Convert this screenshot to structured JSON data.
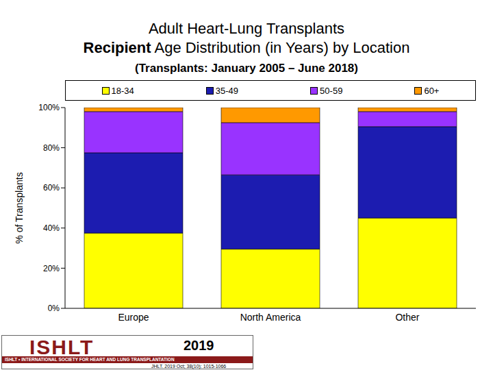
{
  "chart_data": {
    "type": "bar",
    "stacked": true,
    "title": [
      "Adult Heart-Lung Transplants",
      "Recipient Age Distribution (in Years) by Location"
    ],
    "subtitle": "(Transplants: January 2005 – June 2018)",
    "y_label": "% of Transplants",
    "categories": [
      "Europe",
      "North America",
      "Other"
    ],
    "series": [
      {
        "name": "18-34",
        "color": "#ffff00",
        "values": [
          37.5,
          29.5,
          45
        ]
      },
      {
        "name": "35-49",
        "color": "#1c1cb0",
        "values": [
          40,
          37,
          45.5
        ]
      },
      {
        "name": "50-59",
        "color": "#9933ff",
        "values": [
          20.5,
          26,
          7.5
        ]
      },
      {
        "name": "60+",
        "color": "#ff9900",
        "values": [
          2,
          7.5,
          2
        ]
      }
    ],
    "ylim": [
      0,
      100
    ],
    "yticks": [
      {
        "value": 0,
        "label": "0%"
      },
      {
        "value": 20,
        "label": "20%"
      },
      {
        "value": 40,
        "label": "40%"
      },
      {
        "value": 60,
        "label": "60%"
      },
      {
        "value": 80,
        "label": "80%"
      },
      {
        "value": 100,
        "label": "100%"
      }
    ],
    "grid": false,
    "legend": "top"
  },
  "footer": {
    "logo": "ISHLT",
    "society": "ISHLT • INTERNATIONAL SOCIETY FOR HEART AND LUNG TRANSPLANTATION",
    "year": "2019",
    "citation": "JHLT. 2019 Oct; 38(10): 1015-1066"
  }
}
